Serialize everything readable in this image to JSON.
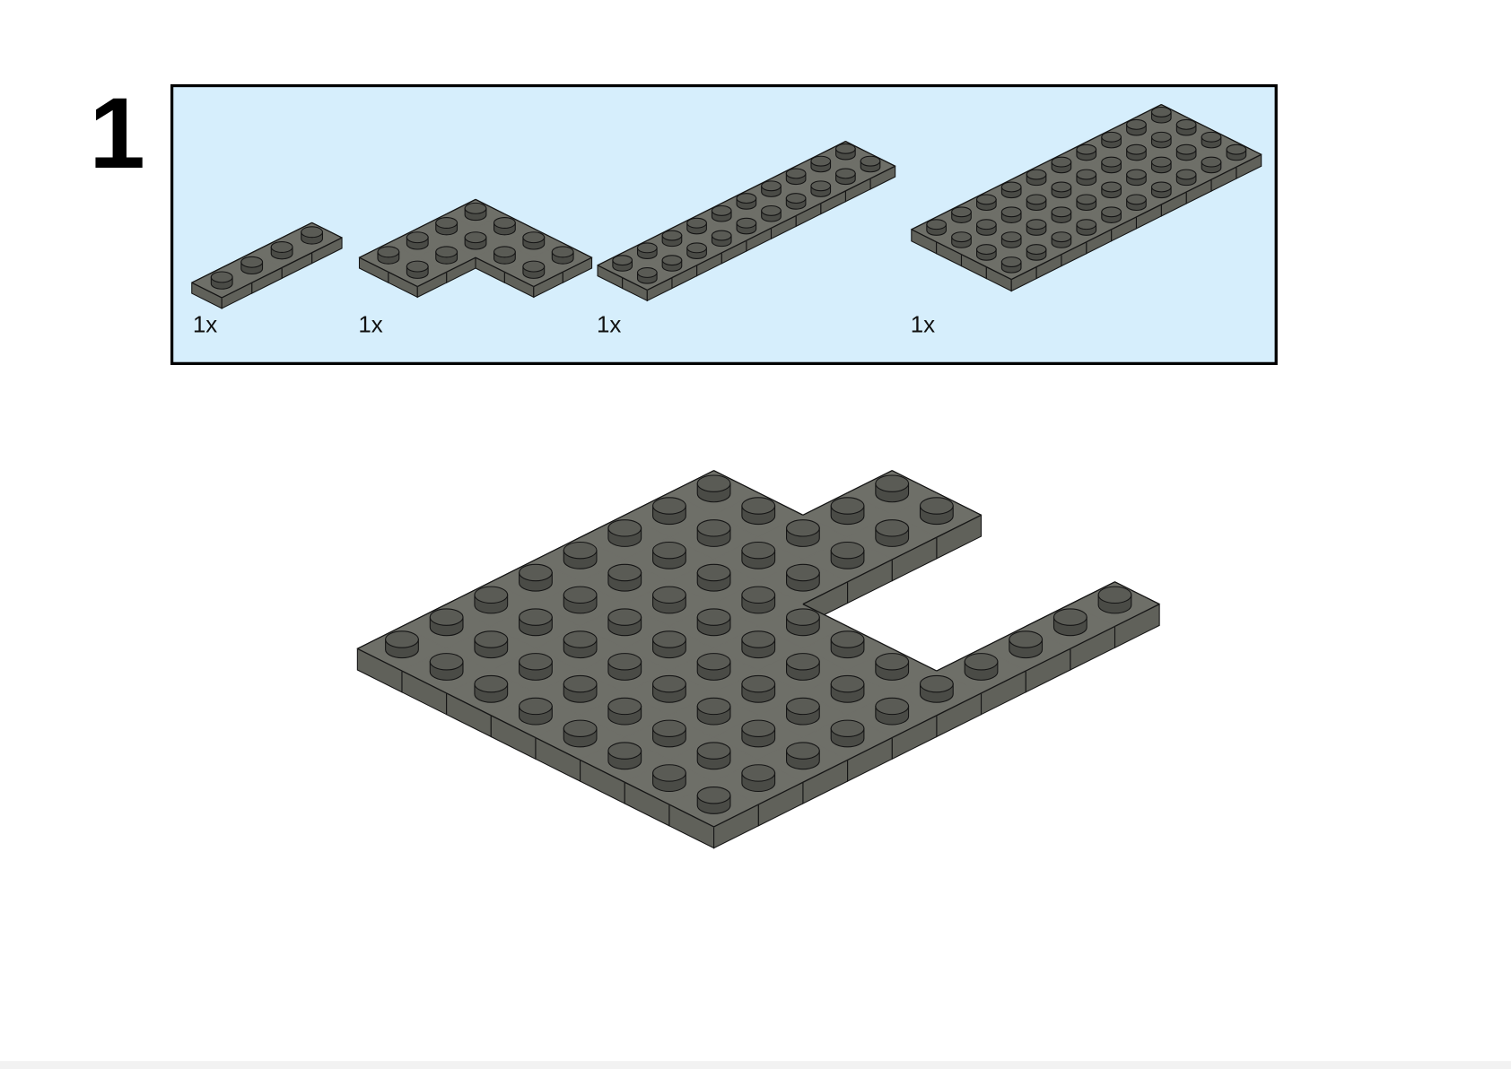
{
  "step": {
    "number": "1"
  },
  "parts": [
    {
      "quantity": "1x"
    },
    {
      "quantity": "1x"
    },
    {
      "quantity": "1x"
    },
    {
      "quantity": "1x"
    }
  ]
}
